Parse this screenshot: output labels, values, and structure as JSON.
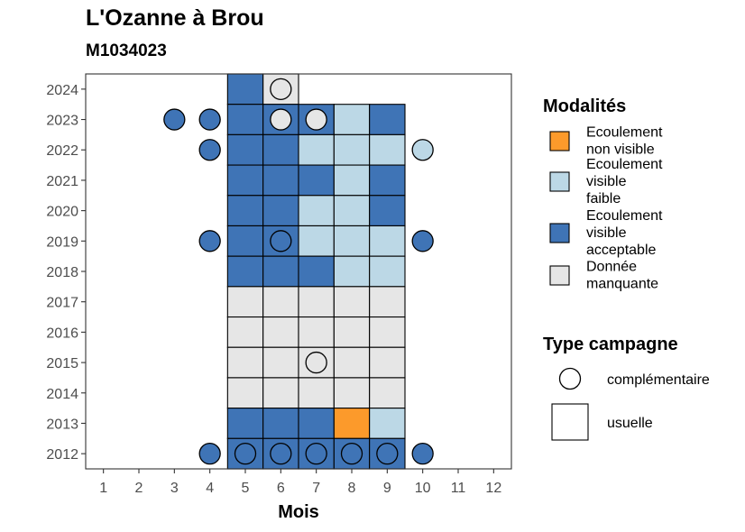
{
  "chart_data": {
    "type": "heatmap",
    "title": "L'Ozanne à Brou",
    "subtitle": "M1034023",
    "xlabel": "Mois",
    "ylabel": "",
    "x_ticks": [
      "1",
      "2",
      "3",
      "4",
      "5",
      "6",
      "7",
      "8",
      "9",
      "10",
      "11",
      "12"
    ],
    "y_ticks": [
      "2012",
      "2013",
      "2014",
      "2015",
      "2016",
      "2017",
      "2018",
      "2019",
      "2020",
      "2021",
      "2022",
      "2023",
      "2024"
    ],
    "xlim": [
      0.5,
      12.5
    ],
    "ylim": [
      2011.5,
      2024.5
    ],
    "grid": false,
    "legend_position": "right",
    "colors": {
      "non_visible": "#fc9a2b",
      "faible": "#bcd8e6",
      "acceptable": "#3f74b6",
      "manquante": "#e6e6e6"
    },
    "legend_modalites": {
      "title": "Modalités",
      "items": [
        {
          "key": "non_visible",
          "lines": [
            "Ecoulement",
            "non visible"
          ]
        },
        {
          "key": "faible",
          "lines": [
            "Ecoulement",
            "visible",
            "faible"
          ]
        },
        {
          "key": "acceptable",
          "lines": [
            "Ecoulement",
            "visible",
            "acceptable"
          ]
        },
        {
          "key": "manquante",
          "lines": [
            "Donnée",
            "manquante"
          ]
        }
      ]
    },
    "legend_campagne": {
      "title": "Type campagne",
      "items": [
        {
          "shape": "circle",
          "label": "complémentaire"
        },
        {
          "shape": "square",
          "label": "usuelle"
        }
      ]
    },
    "usuelle": [
      {
        "year": 2024,
        "month": 5,
        "value": "acceptable"
      },
      {
        "year": 2024,
        "month": 6,
        "value": "manquante"
      },
      {
        "year": 2023,
        "month": 5,
        "value": "acceptable"
      },
      {
        "year": 2023,
        "month": 6,
        "value": "acceptable"
      },
      {
        "year": 2023,
        "month": 7,
        "value": "acceptable"
      },
      {
        "year": 2023,
        "month": 8,
        "value": "faible"
      },
      {
        "year": 2023,
        "month": 9,
        "value": "acceptable"
      },
      {
        "year": 2022,
        "month": 5,
        "value": "acceptable"
      },
      {
        "year": 2022,
        "month": 6,
        "value": "acceptable"
      },
      {
        "year": 2022,
        "month": 7,
        "value": "faible"
      },
      {
        "year": 2022,
        "month": 8,
        "value": "faible"
      },
      {
        "year": 2022,
        "month": 9,
        "value": "faible"
      },
      {
        "year": 2021,
        "month": 5,
        "value": "acceptable"
      },
      {
        "year": 2021,
        "month": 6,
        "value": "acceptable"
      },
      {
        "year": 2021,
        "month": 7,
        "value": "acceptable"
      },
      {
        "year": 2021,
        "month": 8,
        "value": "faible"
      },
      {
        "year": 2021,
        "month": 9,
        "value": "acceptable"
      },
      {
        "year": 2020,
        "month": 5,
        "value": "acceptable"
      },
      {
        "year": 2020,
        "month": 6,
        "value": "acceptable"
      },
      {
        "year": 2020,
        "month": 7,
        "value": "faible"
      },
      {
        "year": 2020,
        "month": 8,
        "value": "faible"
      },
      {
        "year": 2020,
        "month": 9,
        "value": "acceptable"
      },
      {
        "year": 2019,
        "month": 5,
        "value": "acceptable"
      },
      {
        "year": 2019,
        "month": 6,
        "value": "acceptable"
      },
      {
        "year": 2019,
        "month": 7,
        "value": "faible"
      },
      {
        "year": 2019,
        "month": 8,
        "value": "faible"
      },
      {
        "year": 2019,
        "month": 9,
        "value": "faible"
      },
      {
        "year": 2018,
        "month": 5,
        "value": "acceptable"
      },
      {
        "year": 2018,
        "month": 6,
        "value": "acceptable"
      },
      {
        "year": 2018,
        "month": 7,
        "value": "acceptable"
      },
      {
        "year": 2018,
        "month": 8,
        "value": "faible"
      },
      {
        "year": 2018,
        "month": 9,
        "value": "faible"
      },
      {
        "year": 2017,
        "month": 5,
        "value": "manquante"
      },
      {
        "year": 2017,
        "month": 6,
        "value": "manquante"
      },
      {
        "year": 2017,
        "month": 7,
        "value": "manquante"
      },
      {
        "year": 2017,
        "month": 8,
        "value": "manquante"
      },
      {
        "year": 2017,
        "month": 9,
        "value": "manquante"
      },
      {
        "year": 2016,
        "month": 5,
        "value": "manquante"
      },
      {
        "year": 2016,
        "month": 6,
        "value": "manquante"
      },
      {
        "year": 2016,
        "month": 7,
        "value": "manquante"
      },
      {
        "year": 2016,
        "month": 8,
        "value": "manquante"
      },
      {
        "year": 2016,
        "month": 9,
        "value": "manquante"
      },
      {
        "year": 2015,
        "month": 5,
        "value": "manquante"
      },
      {
        "year": 2015,
        "month": 6,
        "value": "manquante"
      },
      {
        "year": 2015,
        "month": 7,
        "value": "manquante"
      },
      {
        "year": 2015,
        "month": 8,
        "value": "manquante"
      },
      {
        "year": 2015,
        "month": 9,
        "value": "manquante"
      },
      {
        "year": 2014,
        "month": 5,
        "value": "manquante"
      },
      {
        "year": 2014,
        "month": 6,
        "value": "manquante"
      },
      {
        "year": 2014,
        "month": 7,
        "value": "manquante"
      },
      {
        "year": 2014,
        "month": 8,
        "value": "manquante"
      },
      {
        "year": 2014,
        "month": 9,
        "value": "manquante"
      },
      {
        "year": 2013,
        "month": 5,
        "value": "acceptable"
      },
      {
        "year": 2013,
        "month": 6,
        "value": "acceptable"
      },
      {
        "year": 2013,
        "month": 7,
        "value": "acceptable"
      },
      {
        "year": 2013,
        "month": 8,
        "value": "non_visible"
      },
      {
        "year": 2013,
        "month": 9,
        "value": "faible"
      },
      {
        "year": 2012,
        "month": 5,
        "value": "acceptable"
      },
      {
        "year": 2012,
        "month": 6,
        "value": "acceptable"
      },
      {
        "year": 2012,
        "month": 7,
        "value": "acceptable"
      },
      {
        "year": 2012,
        "month": 8,
        "value": "acceptable"
      },
      {
        "year": 2012,
        "month": 9,
        "value": "acceptable"
      }
    ],
    "complementaire": [
      {
        "year": 2024,
        "month": 6,
        "value": "manquante"
      },
      {
        "year": 2023,
        "month": 3,
        "value": "acceptable"
      },
      {
        "year": 2023,
        "month": 4,
        "value": "acceptable"
      },
      {
        "year": 2023,
        "month": 6,
        "value": "manquante"
      },
      {
        "year": 2023,
        "month": 7,
        "value": "manquante"
      },
      {
        "year": 2022,
        "month": 4,
        "value": "acceptable"
      },
      {
        "year": 2022,
        "month": 10,
        "value": "faible"
      },
      {
        "year": 2019,
        "month": 4,
        "value": "acceptable"
      },
      {
        "year": 2019,
        "month": 6,
        "value": "acceptable"
      },
      {
        "year": 2019,
        "month": 10,
        "value": "acceptable"
      },
      {
        "year": 2015,
        "month": 7,
        "value": "manquante"
      },
      {
        "year": 2012,
        "month": 4,
        "value": "acceptable"
      },
      {
        "year": 2012,
        "month": 5,
        "value": "acceptable"
      },
      {
        "year": 2012,
        "month": 6,
        "value": "acceptable"
      },
      {
        "year": 2012,
        "month": 7,
        "value": "acceptable"
      },
      {
        "year": 2012,
        "month": 8,
        "value": "acceptable"
      },
      {
        "year": 2012,
        "month": 9,
        "value": "acceptable"
      },
      {
        "year": 2012,
        "month": 10,
        "value": "acceptable"
      }
    ]
  }
}
